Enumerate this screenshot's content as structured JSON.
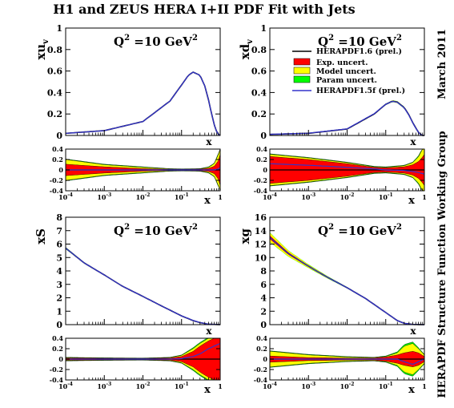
{
  "figure": {
    "title": "H1 and ZEUS HERA I+II PDF Fit with Jets",
    "side_date": "March 2011",
    "side_group": "HERAPDF Structure Function Working Group",
    "q2_label": "Q",
    "q2_sup": "2",
    "q2_value": " =10 GeV",
    "q2_unit_sup": "2",
    "colors": {
      "exp": "#ff0000",
      "model": "#ffff00",
      "param": "#00ff00",
      "central": "#000000",
      "alt": "#3333cc"
    }
  },
  "legend": {
    "central": "HERAPDF1.6 (prel.)",
    "exp": "Exp. uncert.",
    "model": "Model uncert.",
    "param": "Param uncert.",
    "alt": "HERAPDF1.5f (prel.)"
  },
  "chart_data": [
    {
      "type": "area",
      "ylabel": "xu",
      "ylabel_sub": "v",
      "xlabel": "x",
      "xscale": "log",
      "xlim": [
        "1e-4",
        "1"
      ],
      "ylim": [
        0,
        1
      ],
      "yticks": [
        "0",
        "0.2",
        "0.4",
        "0.6",
        "0.8",
        "1"
      ],
      "xticks": [
        "10",
        "10",
        "10",
        "10",
        "1"
      ],
      "xticks_exp": [
        "-4",
        "-3",
        "-2",
        "-1",
        ""
      ],
      "series": [
        {
          "name": "HERAPDF1.6 (prel.)",
          "x": [
            0.0001,
            0.001,
            0.01,
            0.05,
            0.1,
            0.15,
            0.2,
            0.3,
            0.4,
            0.5,
            0.6,
            0.7,
            0.8,
            0.9,
            1.0
          ],
          "y": [
            0.02,
            0.045,
            0.13,
            0.32,
            0.47,
            0.56,
            0.59,
            0.56,
            0.46,
            0.33,
            0.2,
            0.1,
            0.04,
            0.01,
            0.0
          ]
        }
      ],
      "ratio": {
        "ylim": [
          -0.4,
          0.4
        ],
        "yticks": [
          "0.4",
          "0.2",
          "0",
          "-0.2",
          "-0.4"
        ],
        "x": [
          0.0001,
          0.001,
          0.01,
          0.05,
          0.1,
          0.3,
          0.5,
          0.7,
          0.9,
          1.0
        ],
        "exp": [
          0.11,
          0.06,
          0.025,
          0.012,
          0.01,
          0.015,
          0.03,
          0.07,
          0.18,
          0.3
        ],
        "model": [
          0.2,
          0.1,
          0.05,
          0.02,
          0.015,
          0.02,
          0.05,
          0.12,
          0.3,
          0.45
        ],
        "param": [
          0.21,
          0.11,
          0.06,
          0.025,
          0.02,
          0.025,
          0.06,
          0.13,
          0.32,
          0.48
        ],
        "alt": [
          0.0,
          0.0,
          0.0,
          0.0,
          0.0,
          0.0,
          0.0,
          0.0,
          0.02,
          0.05
        ]
      }
    },
    {
      "type": "area",
      "ylabel": "xd",
      "ylabel_sub": "v",
      "xlabel": "x",
      "xscale": "log",
      "xlim": [
        "1e-4",
        "1"
      ],
      "ylim": [
        0,
        1
      ],
      "yticks": [
        "0",
        "0.2",
        "0.4",
        "0.6",
        "0.8",
        "1"
      ],
      "xticks": [
        "10",
        "10",
        "10",
        "10",
        "1"
      ],
      "xticks_exp": [
        "-4",
        "-3",
        "-2",
        "-1",
        ""
      ],
      "series": [
        {
          "name": "HERAPDF1.6 (prel.)",
          "x": [
            0.0001,
            0.001,
            0.01,
            0.05,
            0.1,
            0.15,
            0.2,
            0.3,
            0.4,
            0.5,
            0.6,
            0.7,
            0.8,
            0.9,
            1.0
          ],
          "y": [
            0.01,
            0.02,
            0.06,
            0.2,
            0.29,
            0.32,
            0.31,
            0.26,
            0.19,
            0.12,
            0.07,
            0.03,
            0.01,
            0.0,
            0.0
          ]
        }
      ],
      "ratio": {
        "ylim": [
          -0.4,
          0.4
        ],
        "yticks": [
          "0.4",
          "0.2",
          "0",
          "-0.2",
          "-0.4"
        ],
        "x": [
          0.0001,
          0.001,
          0.01,
          0.05,
          0.1,
          0.3,
          0.5,
          0.7,
          0.9,
          1.0
        ],
        "exp": [
          0.26,
          0.2,
          0.12,
          0.05,
          0.04,
          0.06,
          0.1,
          0.16,
          0.25,
          0.3
        ],
        "model": [
          0.3,
          0.23,
          0.14,
          0.06,
          0.05,
          0.08,
          0.14,
          0.25,
          0.4,
          0.5
        ],
        "param": [
          0.31,
          0.24,
          0.15,
          0.07,
          0.06,
          0.09,
          0.15,
          0.27,
          0.42,
          0.52
        ],
        "alt": [
          0.12,
          0.09,
          0.05,
          0.02,
          0.0,
          -0.01,
          -0.03,
          -0.05,
          -0.07,
          -0.08
        ]
      }
    },
    {
      "type": "area",
      "ylabel": "xS",
      "ylabel_sub": "",
      "xlabel": "x",
      "xscale": "log",
      "xlim": [
        "1e-4",
        "1"
      ],
      "ylim": [
        0,
        8
      ],
      "yticks": [
        "0",
        "1",
        "2",
        "3",
        "4",
        "5",
        "6",
        "7",
        "8"
      ],
      "xticks": [
        "10",
        "10",
        "10",
        "10",
        "1"
      ],
      "xticks_exp": [
        "-4",
        "-3",
        "-2",
        "-1",
        ""
      ],
      "series": [
        {
          "name": "HERAPDF1.6 (prel.)",
          "x": [
            0.0001,
            0.0003,
            0.001,
            0.003,
            0.01,
            0.03,
            0.1,
            0.2,
            0.3,
            0.5,
            1.0
          ],
          "y": [
            5.7,
            4.6,
            3.7,
            2.85,
            2.1,
            1.4,
            0.65,
            0.3,
            0.15,
            0.03,
            0.0
          ]
        }
      ],
      "ratio": {
        "ylim": [
          -0.4,
          0.4
        ],
        "yticks": [
          "0.4",
          "0.2",
          "0",
          "-0.2",
          "-0.4"
        ],
        "x": [
          0.0001,
          0.001,
          0.01,
          0.05,
          0.1,
          0.2,
          0.3,
          0.5,
          0.7,
          1.0
        ],
        "exp": [
          0.02,
          0.015,
          0.012,
          0.02,
          0.05,
          0.15,
          0.25,
          0.35,
          0.4,
          0.42
        ],
        "model": [
          0.03,
          0.02,
          0.015,
          0.03,
          0.07,
          0.2,
          0.3,
          0.4,
          0.45,
          0.46
        ],
        "param": [
          0.035,
          0.025,
          0.02,
          0.035,
          0.08,
          0.22,
          0.32,
          0.42,
          0.47,
          0.48
        ],
        "alt": [
          0.0,
          0.0,
          0.0,
          0.0,
          0.01,
          0.05,
          0.1,
          0.2,
          0.25,
          0.3
        ]
      }
    },
    {
      "type": "area",
      "ylabel": "xg",
      "ylabel_sub": "",
      "xlabel": "x",
      "xscale": "log",
      "xlim": [
        "1e-4",
        "1"
      ],
      "ylim": [
        0,
        16
      ],
      "yticks": [
        "0",
        "2",
        "4",
        "6",
        "8",
        "10",
        "12",
        "14",
        "16"
      ],
      "xticks": [
        "10",
        "10",
        "10",
        "10",
        "1"
      ],
      "xticks_exp": [
        "-4",
        "-3",
        "-2",
        "-1",
        ""
      ],
      "series": [
        {
          "name": "HERAPDF1.6 (prel.)",
          "x": [
            0.0001,
            0.0003,
            0.001,
            0.003,
            0.01,
            0.03,
            0.1,
            0.2,
            0.3,
            0.5,
            1.0
          ],
          "y": [
            13.0,
            10.6,
            8.7,
            7.1,
            5.5,
            3.9,
            1.8,
            0.6,
            0.2,
            0.03,
            0.0
          ]
        }
      ],
      "ratio": {
        "ylim": [
          -0.4,
          0.4
        ],
        "yticks": [
          "0.4",
          "0.2",
          "0",
          "-0.2",
          "-0.4"
        ],
        "x": [
          0.0001,
          0.001,
          0.01,
          0.05,
          0.1,
          0.2,
          0.3,
          0.5,
          0.7,
          1.0
        ],
        "exp": [
          0.06,
          0.03,
          0.02,
          0.02,
          0.04,
          0.08,
          0.12,
          0.15,
          0.12,
          0.05
        ],
        "model": [
          0.15,
          0.08,
          0.04,
          0.03,
          0.05,
          0.12,
          0.25,
          0.3,
          0.2,
          0.08
        ],
        "param": [
          0.16,
          0.09,
          0.05,
          0.035,
          0.06,
          0.14,
          0.28,
          0.33,
          0.22,
          0.09
        ],
        "alt": [
          0.0,
          0.0,
          0.0,
          0.0,
          0.0,
          0.0,
          -0.05,
          -0.1,
          -0.05,
          0.0
        ]
      }
    }
  ]
}
